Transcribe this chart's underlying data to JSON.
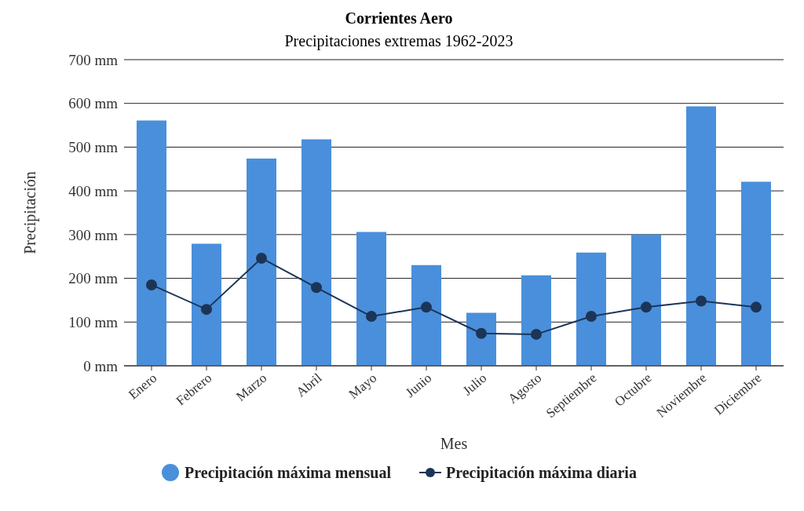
{
  "chart_data": {
    "type": "bar",
    "title": "Corrientes Aero",
    "subtitle": "Precipitaciones extremas 1962-2023",
    "xlabel": "Mes",
    "ylabel": "Precipitación",
    "categories": [
      "Enero",
      "Febrero",
      "Marzo",
      "Abril",
      "Mayo",
      "Junio",
      "Julio",
      "Agosto",
      "Septiembre",
      "Octubre",
      "Noviembre",
      "Diciembre"
    ],
    "series": [
      {
        "name": "Precipitación máxima mensual",
        "color": "#4a8fdb",
        "values": [
          561,
          279,
          474,
          518,
          306,
          230,
          121,
          207,
          259,
          300,
          593,
          421
        ]
      },
      {
        "name": "Precipitación máxima diaria",
        "type": "line",
        "color": "#1c3557",
        "values": [
          185,
          129,
          246,
          179,
          113,
          134,
          74,
          72,
          113,
          134,
          148,
          134
        ]
      }
    ],
    "ylim": [
      0,
      700
    ],
    "yticks": [
      {
        "value": 0,
        "label": "0 mm"
      },
      {
        "value": 100,
        "label": "100 mm"
      },
      {
        "value": 200,
        "label": "200 mm"
      },
      {
        "value": 300,
        "label": "300 mm"
      },
      {
        "value": 400,
        "label": "400 mm"
      },
      {
        "value": 500,
        "label": "500 mm"
      },
      {
        "value": 600,
        "label": "600 mm"
      },
      {
        "value": 700,
        "label": "700 mm"
      }
    ],
    "grid": "y",
    "legend": "bottom",
    "marker": "circle",
    "line_style": "solid"
  }
}
